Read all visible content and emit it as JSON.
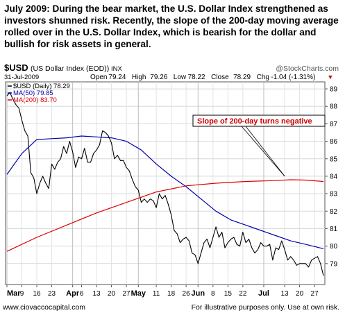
{
  "caption": "July 2009: During the bear market, the U.S. Dollar Index strengthened as investors shunned risk.  Recently, the slope of the 200-day moving average rolled over in the U.S. Dollar Index, which is bearish for the dollar and bullish for risk assets in general.",
  "footer": {
    "left": "www.ciovaccocapital.com",
    "right": "For illustrative purposes only.  Use at own risk."
  },
  "chart_data": {
    "type": "line",
    "symbol": "$USD",
    "title": "(US Dollar Index (EOD))",
    "exchange": "INX",
    "date": "31-Jul-2009",
    "watermark": "@StockCharts.com",
    "quote": {
      "open_label": "Open",
      "open": "79.24",
      "high_label": "High",
      "high": "79.26",
      "low_label": "Low",
      "low": "78.22",
      "close_label": "Close",
      "close": "78.29",
      "chg_label": "Chg",
      "chg": "-1.04 (-1.31%)",
      "arrow": "▼"
    },
    "legend": [
      {
        "label": "$USD (Daily) 78.29",
        "color": "#000000"
      },
      {
        "label": "MA(50) 79.85",
        "color": "#0000aa"
      },
      {
        "label": "MA(200) 83.70",
        "color": "#dd0000"
      }
    ],
    "annotation": "Slope of 200-day turns negative",
    "ylim": [
      77.8,
      89.4
    ],
    "y_ticks": [
      79,
      80,
      81,
      82,
      83,
      84,
      85,
      86,
      87,
      88,
      89
    ],
    "n_days": 107,
    "x_ticks": [
      {
        "label": "Mar",
        "i": 0,
        "bold": true
      },
      {
        "label": "9",
        "i": 5
      },
      {
        "label": "16",
        "i": 10
      },
      {
        "label": "23",
        "i": 15
      },
      {
        "label": "Apr",
        "i": 22,
        "bold": true
      },
      {
        "label": "6",
        "i": 25
      },
      {
        "label": "13",
        "i": 30
      },
      {
        "label": "20",
        "i": 35
      },
      {
        "label": "27",
        "i": 40
      },
      {
        "label": "May",
        "i": 44,
        "bold": true
      },
      {
        "label": "11",
        "i": 50
      },
      {
        "label": "18",
        "i": 55
      },
      {
        "label": "26",
        "i": 60
      },
      {
        "label": "Jun",
        "i": 64,
        "bold": true
      },
      {
        "label": "8",
        "i": 69
      },
      {
        "label": "15",
        "i": 74
      },
      {
        "label": "22",
        "i": 79
      },
      {
        "label": "Jul",
        "i": 86,
        "bold": true
      },
      {
        "label": "13",
        "i": 93
      },
      {
        "label": "20",
        "i": 98
      },
      {
        "label": "27",
        "i": 103
      }
    ],
    "series": [
      {
        "name": "$USD (Daily) 78.29",
        "color": "#000000",
        "values": [
          88.6,
          88.8,
          88.4,
          88.1,
          87.9,
          87.2,
          86.6,
          86.3,
          84.2,
          83.9,
          83.0,
          83.6,
          84.0,
          83.6,
          83.3,
          84.7,
          84.4,
          84.8,
          85.0,
          85.7,
          85.3,
          86.0,
          85.4,
          84.5,
          85.1,
          85.0,
          85.6,
          84.8,
          84.8,
          85.3,
          85.5,
          85.8,
          86.6,
          86.5,
          86.3,
          85.9,
          85.0,
          85.2,
          84.9,
          84.9,
          84.5,
          84.3,
          83.8,
          83.4,
          83.2,
          82.5,
          82.7,
          82.5,
          82.7,
          82.6,
          82.2,
          83.0,
          82.7,
          82.9,
          82.4,
          81.8,
          80.9,
          80.7,
          80.2,
          80.4,
          80.5,
          80.3,
          79.6,
          79.5,
          79.0,
          79.6,
          80.2,
          80.4,
          79.9,
          80.5,
          81.1,
          80.5,
          80.8,
          79.9,
          80.2,
          80.4,
          80.5,
          80.1,
          80.0,
          80.8,
          80.2,
          80.4,
          79.9,
          79.6,
          79.8,
          80.2,
          80.0,
          80.0,
          80.1,
          79.2,
          79.9,
          79.8,
          80.3,
          79.8,
          79.2,
          79.4,
          79.2,
          78.9,
          79.0,
          79.0,
          79.0,
          78.8,
          79.2,
          79.3,
          79.4,
          79.0,
          78.3
        ]
      },
      {
        "name": "MA(50) 79.85",
        "color": "#0000aa",
        "x": [
          0,
          5,
          10,
          15,
          20,
          25,
          30,
          35,
          40,
          45,
          50,
          55,
          60,
          65,
          70,
          75,
          80,
          85,
          90,
          95,
          100,
          106
        ],
        "values": [
          84.1,
          85.3,
          86.1,
          86.15,
          86.2,
          86.3,
          86.25,
          86.2,
          86.0,
          85.5,
          84.7,
          84.0,
          83.4,
          82.7,
          82.0,
          81.5,
          81.2,
          80.9,
          80.6,
          80.3,
          80.1,
          79.85
        ]
      },
      {
        "name": "MA(200) 83.70",
        "color": "#dd0000",
        "x": [
          0,
          10,
          20,
          30,
          40,
          50,
          60,
          70,
          80,
          90,
          95,
          100,
          106
        ],
        "values": [
          79.7,
          80.5,
          81.2,
          81.9,
          82.5,
          83.1,
          83.45,
          83.6,
          83.7,
          83.75,
          83.8,
          83.78,
          83.7
        ]
      }
    ]
  }
}
